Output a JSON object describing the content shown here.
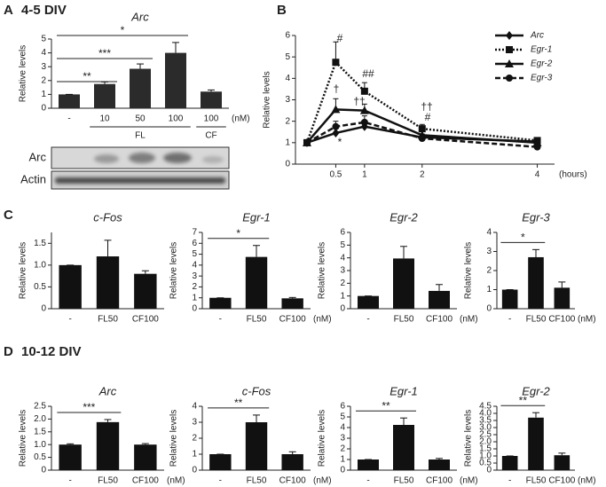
{
  "panel_labels": [
    "A",
    "B",
    "C",
    "D"
  ],
  "div_labels": [
    "4-5 DIV",
    "10-12 DIV"
  ],
  "blot_labels": [
    "Arc",
    "Actin"
  ],
  "chart_data": [
    {
      "type": "bar",
      "title": "Arc",
      "ylabel": "Relative levels",
      "unit": "(nM)",
      "categories": [
        "-",
        "10",
        "50",
        "100",
        "100"
      ],
      "groups": [
        "FL",
        "CF"
      ],
      "values": [
        1,
        1.75,
        2.85,
        4.0,
        1.2
      ],
      "errors": [
        0,
        0.15,
        0.35,
        0.75,
        0.12
      ],
      "color": "#2b2b2b",
      "ylim": [
        0,
        5
      ],
      "yticks": [
        0,
        1,
        2,
        3,
        4,
        5
      ],
      "annotations": [
        "**",
        "***",
        "*"
      ]
    },
    {
      "type": "line",
      "ylabel": "Relative levels",
      "xlabel": "(hours)",
      "x": [
        0,
        0.5,
        1,
        2,
        4
      ],
      "xlim": [
        -0.2,
        4.3
      ],
      "xticks": [
        0.5,
        1,
        2,
        4
      ],
      "ylim": [
        0,
        6
      ],
      "yticks": [
        0,
        1,
        2,
        3,
        4,
        5,
        6
      ],
      "series": [
        {
          "name": "Arc",
          "color": "#111111",
          "marker": "diamond",
          "dash": "solid",
          "values": [
            1,
            1.45,
            1.75,
            1.25,
            1.05
          ],
          "errors": [
            0,
            0.2,
            0.25,
            0.15,
            0.05
          ]
        },
        {
          "name": "Egr-1",
          "color": "#111111",
          "marker": "square",
          "dash": "dotted",
          "values": [
            1,
            4.75,
            3.4,
            1.65,
            1.1
          ],
          "errors": [
            0,
            0.95,
            0.4,
            0.2,
            0.1
          ]
        },
        {
          "name": "Egr-2",
          "color": "#111111",
          "marker": "triangle",
          "dash": "solid",
          "values": [
            1,
            2.55,
            2.5,
            1.35,
            1.0
          ],
          "errors": [
            0,
            0.5,
            0.3,
            0.2,
            0.1
          ]
        },
        {
          "name": "Egr-3",
          "color": "#111111",
          "marker": "circle",
          "dash": "dashed",
          "values": [
            1,
            1.75,
            1.95,
            1.2,
            0.8
          ],
          "errors": [
            0,
            0.25,
            0.3,
            0.15,
            0.1
          ]
        }
      ],
      "annotations": [
        "#",
        "##",
        "#",
        "†",
        "††",
        "††",
        "*"
      ]
    },
    {
      "type": "bar",
      "title": "c-Fos",
      "ylabel": "Relative levels",
      "categories": [
        "-",
        "FL50",
        "CF100"
      ],
      "values": [
        1,
        1.2,
        0.8
      ],
      "errors": [
        0,
        0.37,
        0.07
      ],
      "color": "#111111",
      "ylim": [
        0,
        1.75
      ],
      "yticks": [
        0,
        0.5,
        {
          "value": 1,
          "label": "1.0"
        },
        1.5
      ],
      "annotations": []
    },
    {
      "type": "bar",
      "title": "Egr-1",
      "ylabel": "Relative levels",
      "unit": "(nM)",
      "categories": [
        "-",
        "FL50",
        "CF100"
      ],
      "values": [
        1,
        4.75,
        0.95
      ],
      "errors": [
        0,
        1.05,
        0.08
      ],
      "color": "#111111",
      "ylim": [
        0,
        7
      ],
      "yticks": [
        0,
        1,
        2,
        3,
        4,
        5,
        6,
        7
      ],
      "annotations": [
        "*"
      ]
    },
    {
      "type": "bar",
      "title": "Egr-2",
      "ylabel": "Relative levels",
      "unit": "(nM)",
      "categories": [
        "-",
        "FL50",
        "CF100"
      ],
      "values": [
        1,
        3.95,
        1.4
      ],
      "errors": [
        0,
        0.95,
        0.5
      ],
      "color": "#111111",
      "ylim": [
        0,
        6
      ],
      "yticks": [
        0,
        1,
        2,
        3,
        4,
        5,
        6
      ],
      "annotations": []
    },
    {
      "type": "bar",
      "title": "Egr-3",
      "ylabel": "Relative levels",
      "unit": "(nM)",
      "categories": [
        "-",
        "FL50",
        "CF100"
      ],
      "values": [
        1,
        2.7,
        1.1
      ],
      "errors": [
        0,
        0.4,
        0.3
      ],
      "color": "#111111",
      "ylim": [
        0,
        4
      ],
      "yticks": [
        0,
        1,
        2,
        3,
        4
      ],
      "annotations": [
        "*"
      ]
    },
    {
      "type": "bar",
      "title": "Arc",
      "ylabel": "Relative levels",
      "unit": "(nM)",
      "categories": [
        "-",
        "FL50",
        "CF100"
      ],
      "values": [
        1,
        1.88,
        1.0
      ],
      "errors": [
        0.03,
        0.1,
        0.04
      ],
      "color": "#111111",
      "ylim": [
        0,
        2.5
      ],
      "yticks": [
        0,
        0.5,
        {
          "value": 1,
          "label": "1.0"
        },
        1.5,
        {
          "value": 2,
          "label": "2.0"
        },
        2.5
      ],
      "annotations": [
        "***"
      ]
    },
    {
      "type": "bar",
      "title": "c-Fos",
      "ylabel": "Relative levels",
      "unit": "(nM)",
      "categories": [
        "-",
        "FL50",
        "CF100"
      ],
      "values": [
        1,
        3.0,
        1.0
      ],
      "errors": [
        0,
        0.45,
        0.15
      ],
      "color": "#111111",
      "ylim": [
        0,
        4
      ],
      "yticks": [
        0,
        1,
        2,
        3,
        4
      ],
      "annotations": [
        "**"
      ]
    },
    {
      "type": "bar",
      "title": "Egr-1",
      "ylabel": "Relative levels",
      "unit": "(nM)",
      "categories": [
        "-",
        "FL50",
        "CF100"
      ],
      "values": [
        1,
        4.25,
        1.0
      ],
      "errors": [
        0,
        0.65,
        0.1
      ],
      "color": "#111111",
      "ylim": [
        0,
        6
      ],
      "yticks": [
        0,
        1,
        2,
        3,
        4,
        5,
        6
      ],
      "annotations": [
        "**"
      ]
    },
    {
      "type": "bar",
      "title": "Egr-2",
      "ylabel": "Relative levels",
      "unit": "(nM)",
      "categories": [
        "-",
        "FL50",
        "CF100"
      ],
      "values": [
        1,
        3.7,
        1.05
      ],
      "errors": [
        0,
        0.35,
        0.15
      ],
      "color": "#111111",
      "ylim": [
        0,
        4.5
      ],
      "yticks": [
        0,
        0.5,
        {
          "value": 1,
          "label": "1.0"
        },
        1.5,
        {
          "value": 2,
          "label": "2.0"
        },
        2.5,
        {
          "value": 3,
          "label": "3.0"
        },
        3.5,
        {
          "value": 4,
          "label": "4.0"
        },
        4.5
      ],
      "annotations": [
        "**"
      ]
    }
  ]
}
